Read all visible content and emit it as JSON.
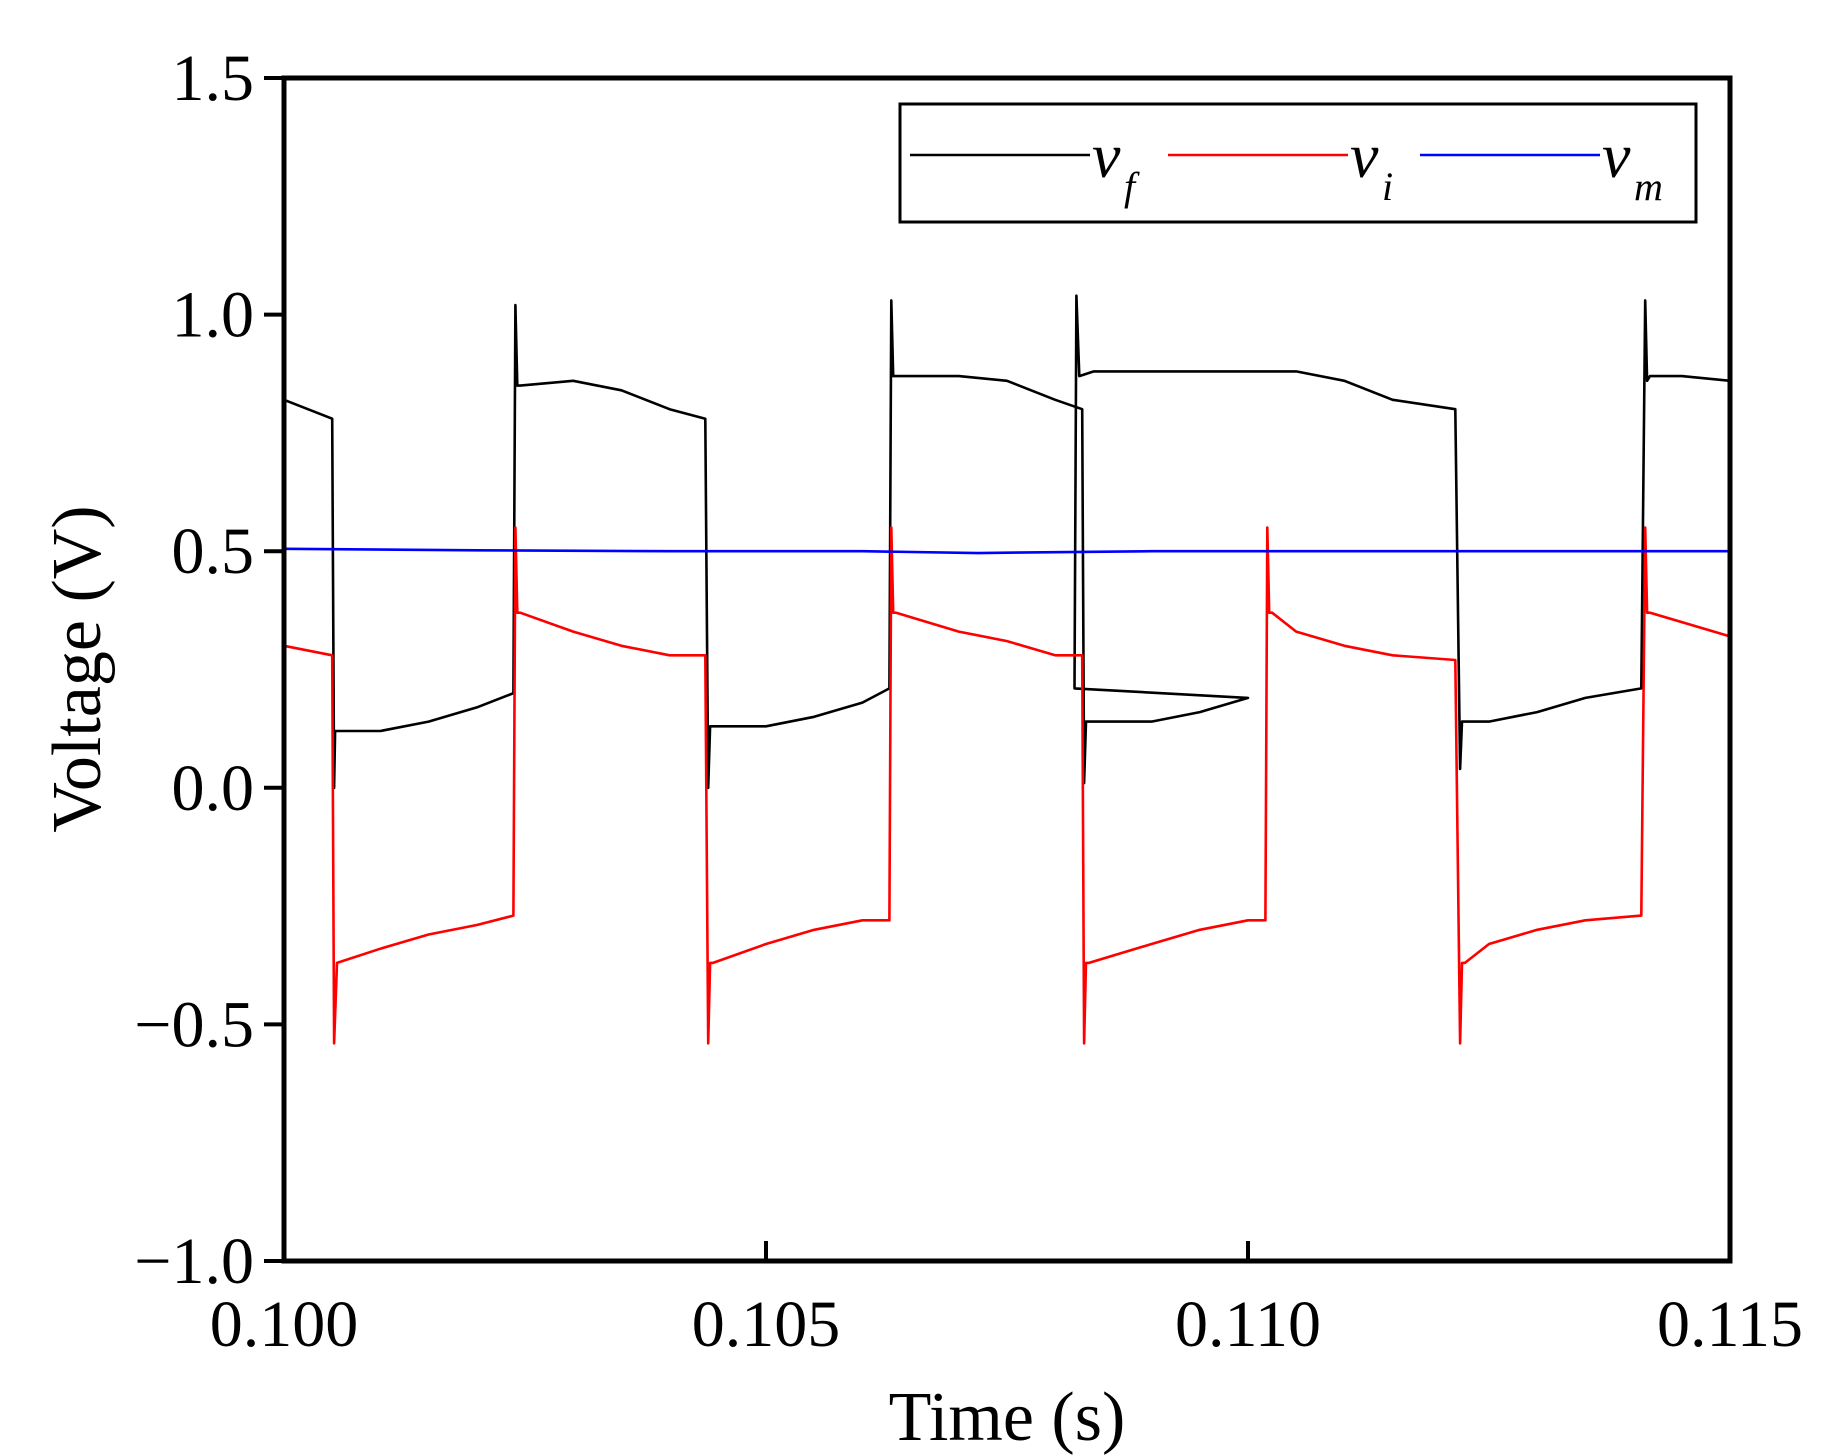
{
  "chart_data": {
    "type": "line",
    "title": "",
    "xlabel": "Time (s)",
    "ylabel": "Voltage (V)",
    "xlim": [
      0.1,
      0.115
    ],
    "ylim": [
      -1.0,
      1.5
    ],
    "xticks": [
      0.1,
      0.105,
      0.11,
      0.115
    ],
    "xtick_labels": [
      "0.100",
      "0.105",
      "0.110",
      "0.115"
    ],
    "yticks": [
      -1.0,
      -0.5,
      0.0,
      0.5,
      1.0,
      1.5
    ],
    "ytick_labels": [
      "−1.0",
      "−0.5",
      "0.0",
      "0.5",
      "1.0",
      "1.5"
    ],
    "grid": false,
    "legend_position": "top-right",
    "series": [
      {
        "name": "v_f",
        "legend_main": "v",
        "legend_sub": "f",
        "color": "#000000",
        "x": [
          0.1,
          0.1005,
          0.1005,
          0.10052,
          0.10053,
          0.1006,
          0.101,
          0.1015,
          0.102,
          0.10238,
          0.1024,
          0.10242,
          0.10245,
          0.103,
          0.1035,
          0.104,
          0.10437,
          0.1044,
          0.10442,
          0.10445,
          0.105,
          0.1055,
          0.106,
          0.10628,
          0.1063,
          0.10632,
          0.10635,
          0.107,
          0.1075,
          0.108,
          0.10828,
          0.1083,
          0.10832,
          0.10835,
          0.109,
          0.1095,
          0.11,
          0.1082,
          0.10822,
          0.10825,
          0.1084,
          0.1105,
          0.111,
          0.1115,
          0.11215,
          0.1122,
          0.11222,
          0.11225,
          0.1125,
          0.113,
          0.1135,
          0.11408,
          0.11412,
          0.11414,
          0.11417,
          0.1145,
          0.115
        ],
        "y": [
          0.82,
          0.78,
          0.78,
          0.0,
          0.12,
          0.12,
          0.12,
          0.14,
          0.17,
          0.2,
          1.02,
          0.85,
          0.85,
          0.86,
          0.84,
          0.8,
          0.78,
          0.0,
          0.13,
          0.13,
          0.13,
          0.15,
          0.18,
          0.21,
          1.03,
          0.87,
          0.87,
          0.87,
          0.86,
          0.82,
          0.8,
          0.01,
          0.14,
          0.14,
          0.14,
          0.16,
          0.19,
          0.21,
          1.04,
          0.87,
          0.88,
          0.88,
          0.86,
          0.82,
          0.8,
          0.04,
          0.14,
          0.14,
          0.14,
          0.16,
          0.19,
          0.21,
          1.03,
          0.86,
          0.87,
          0.87,
          0.86
        ]
      },
      {
        "name": "v_i",
        "legend_main": "v",
        "legend_sub": "i",
        "color": "#ff0000",
        "x": [
          0.1,
          0.1005,
          0.1005,
          0.10052,
          0.10055,
          0.101,
          0.1015,
          0.102,
          0.10238,
          0.1024,
          0.10242,
          0.10245,
          0.103,
          0.1035,
          0.104,
          0.10437,
          0.1044,
          0.10442,
          0.10445,
          0.105,
          0.1055,
          0.106,
          0.10628,
          0.1063,
          0.10632,
          0.10635,
          0.107,
          0.1075,
          0.108,
          0.10828,
          0.1083,
          0.10832,
          0.10835,
          0.109,
          0.1095,
          0.11,
          0.11018,
          0.1102,
          0.11022,
          0.11025,
          0.1105,
          0.111,
          0.1115,
          0.11215,
          0.1122,
          0.11222,
          0.11225,
          0.1125,
          0.113,
          0.1135,
          0.11408,
          0.11412,
          0.11414,
          0.11417,
          0.115
        ],
        "y": [
          0.3,
          0.28,
          0.28,
          -0.54,
          -0.37,
          -0.34,
          -0.31,
          -0.29,
          -0.27,
          0.55,
          0.37,
          0.37,
          0.33,
          0.3,
          0.28,
          0.28,
          -0.54,
          -0.37,
          -0.37,
          -0.33,
          -0.3,
          -0.28,
          -0.28,
          0.55,
          0.37,
          0.37,
          0.33,
          0.31,
          0.28,
          0.28,
          -0.54,
          -0.37,
          -0.37,
          -0.33,
          -0.3,
          -0.28,
          -0.28,
          0.55,
          0.37,
          0.37,
          0.33,
          0.3,
          0.28,
          0.27,
          -0.54,
          -0.37,
          -0.37,
          -0.33,
          -0.3,
          -0.28,
          -0.27,
          0.55,
          0.37,
          0.37,
          0.32
        ]
      },
      {
        "name": "v_m",
        "legend_main": "v",
        "legend_sub": "m",
        "color": "#0000ff",
        "x": [
          0.1,
          0.102,
          0.104,
          0.106,
          0.1072,
          0.1076,
          0.109,
          0.111,
          0.113,
          0.115
        ],
        "y": [
          0.505,
          0.502,
          0.5,
          0.5,
          0.496,
          0.497,
          0.5,
          0.5,
          0.5,
          0.5
        ]
      }
    ]
  }
}
